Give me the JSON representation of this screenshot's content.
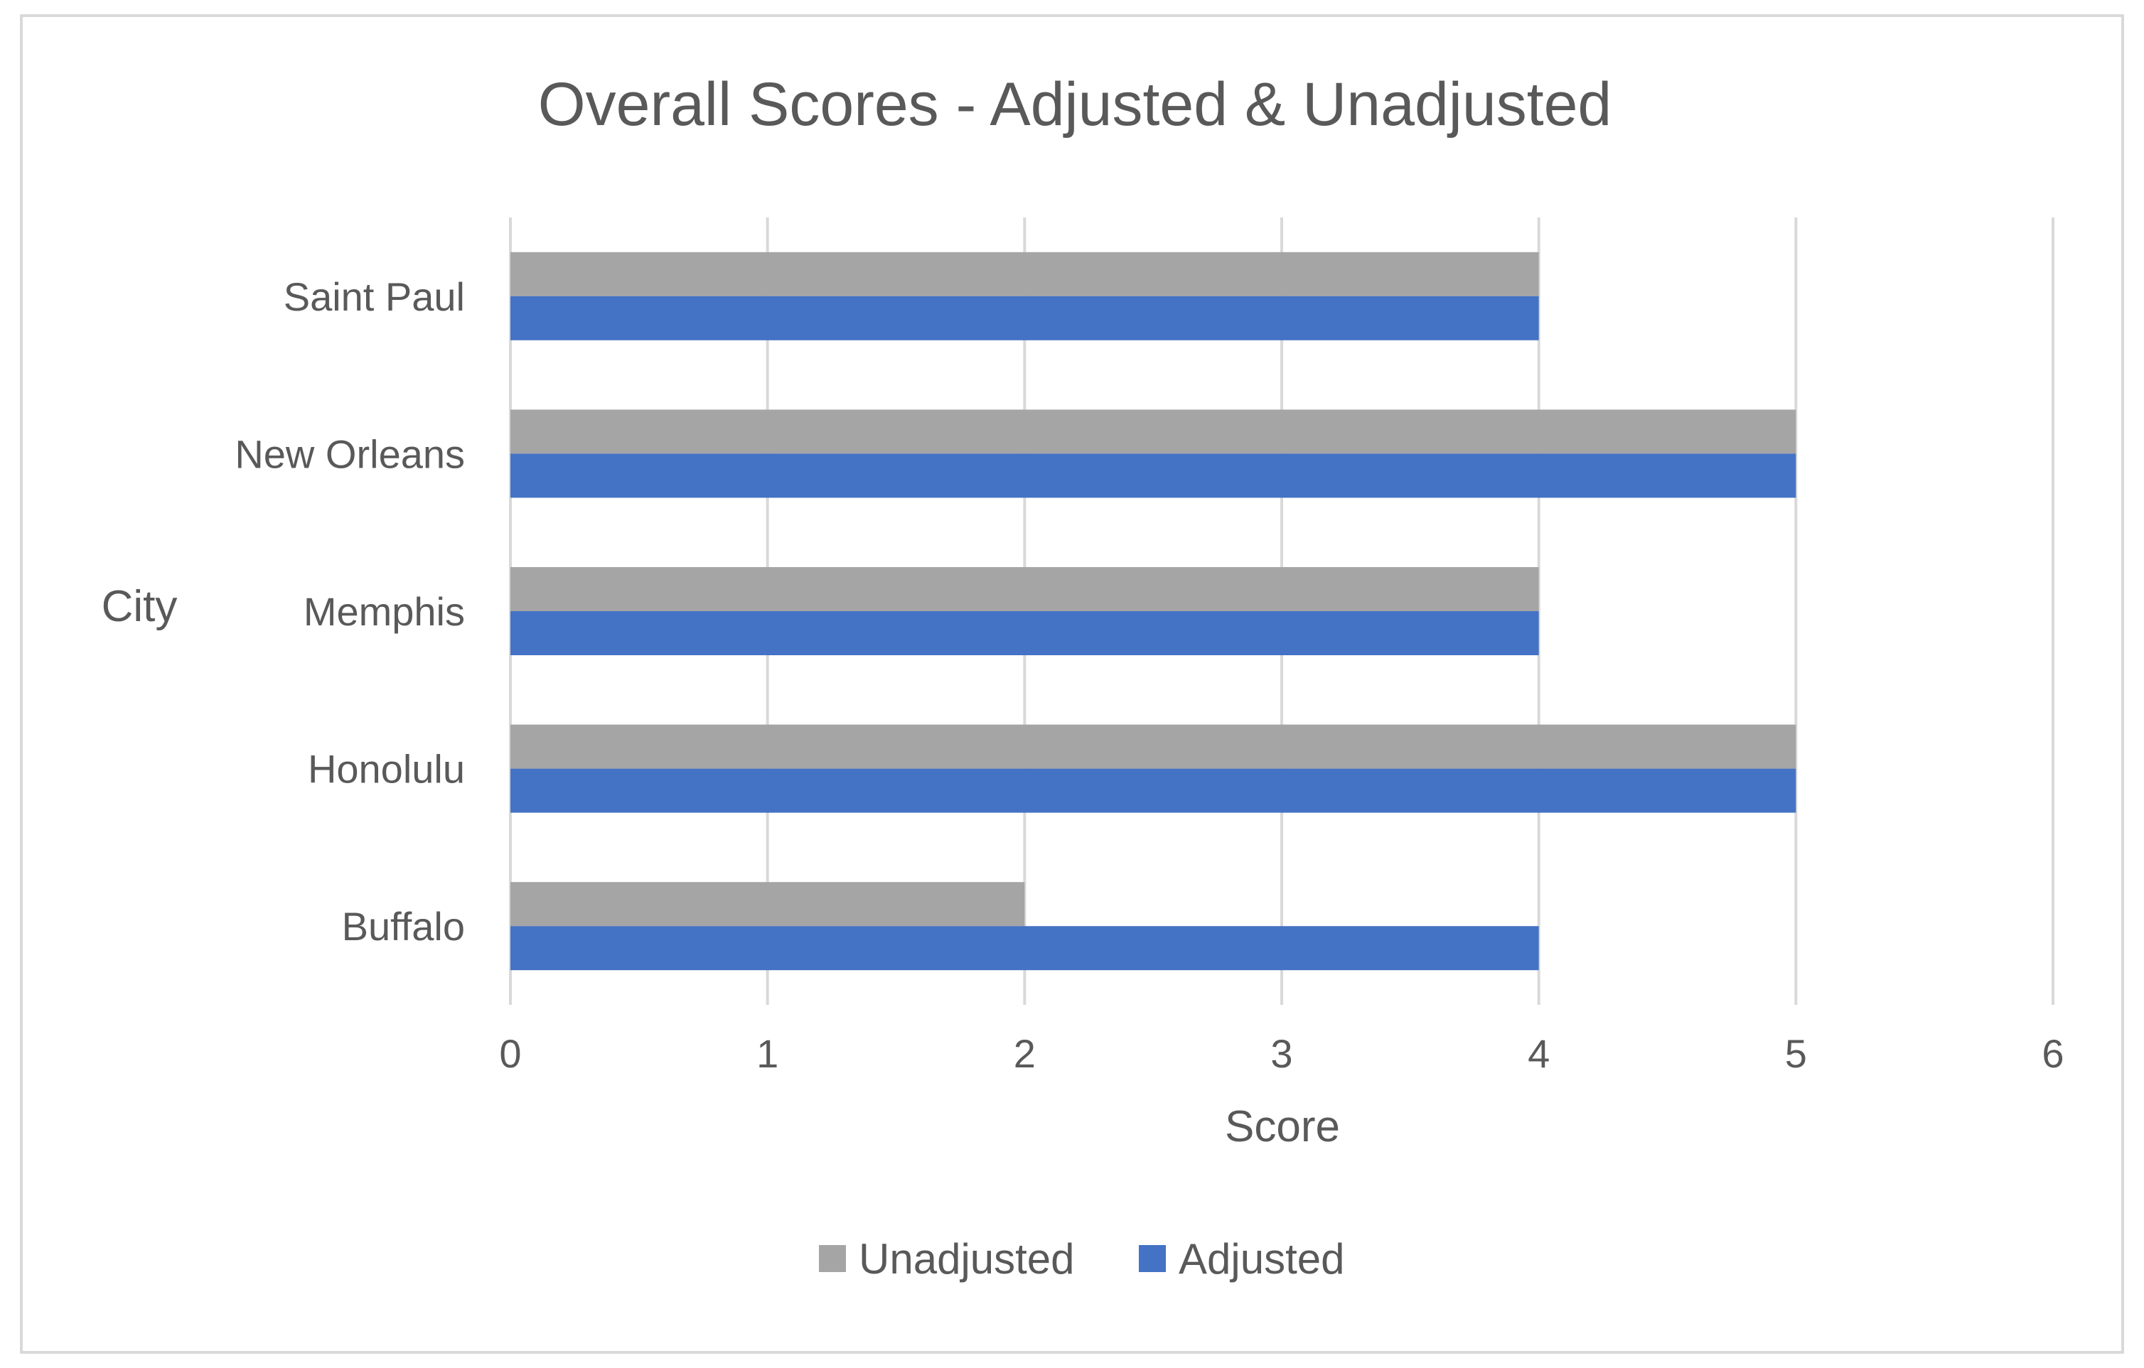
{
  "chart_data": {
    "type": "bar",
    "orientation": "horizontal",
    "title": "Overall Scores - Adjusted & Unadjusted",
    "xlabel": "Score",
    "ylabel": "City",
    "categories": [
      "Buffalo",
      "Honolulu",
      "Memphis",
      "New Orleans",
      "Saint Paul"
    ],
    "series": [
      {
        "name": "Unadjusted",
        "color": "#a5a5a5",
        "values": [
          2,
          5,
          4,
          5,
          4
        ]
      },
      {
        "name": "Adjusted",
        "color": "#4472c4",
        "values": [
          4,
          5,
          4,
          5,
          4
        ]
      }
    ],
    "xlim": [
      0,
      6
    ],
    "xticks": [
      "0",
      "1",
      "2",
      "3",
      "4",
      "5",
      "6"
    ],
    "grid": true,
    "legend": "bottom"
  }
}
